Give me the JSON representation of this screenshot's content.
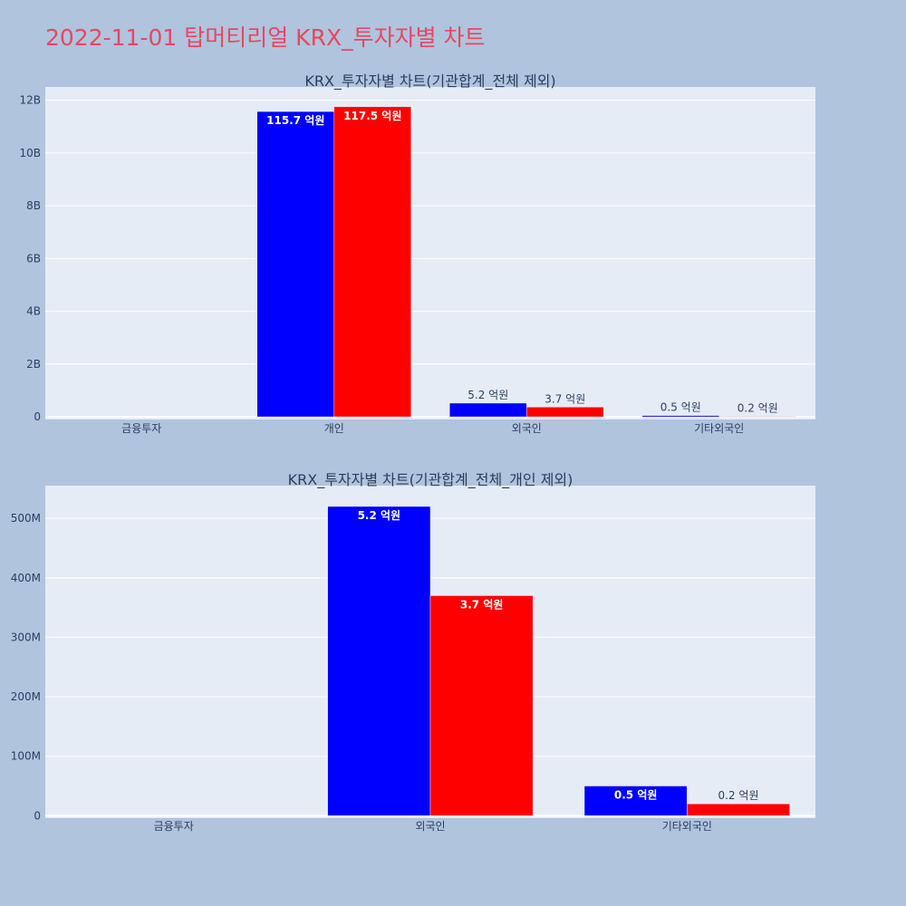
{
  "page": {
    "title": "2022-11-01 탑머티리얼 KRX_투자자별 차트"
  },
  "chart_data": [
    {
      "type": "bar",
      "title": "KRX_투자자별 차트(기관합계_전체 제외)",
      "categories": [
        "금융투자",
        "개인",
        "외국인",
        "기타외국인"
      ],
      "series": [
        {
          "color": "#0000ff",
          "values": [
            0,
            11570000000,
            520000000,
            50000000
          ],
          "labels": [
            "",
            "115.7 억원",
            "5.2 억원",
            "0.5 억원"
          ]
        },
        {
          "color": "#ff0000",
          "values": [
            0,
            11750000000,
            370000000,
            20000000
          ],
          "labels": [
            "",
            "117.5 억원",
            "3.7 억원",
            "0.2 억원"
          ]
        }
      ],
      "yticks": [
        0,
        2000000000,
        4000000000,
        6000000000,
        8000000000,
        10000000000,
        12000000000
      ],
      "ytick_labels": [
        "0",
        "2B",
        "4B",
        "6B",
        "8B",
        "10B",
        "12B"
      ],
      "ylim": [
        -100000000,
        12500000000
      ],
      "grid": true,
      "legend": "none"
    },
    {
      "type": "bar",
      "title": "KRX_투자자별 차트(기관합계_전체_개인 제외)",
      "categories": [
        "금융투자",
        "외국인",
        "기타외국인"
      ],
      "series": [
        {
          "color": "#0000ff",
          "values": [
            0,
            520000000,
            50000000
          ],
          "labels": [
            "",
            "5.2 억원",
            "0.5 억원"
          ]
        },
        {
          "color": "#ff0000",
          "values": [
            0,
            370000000,
            20000000
          ],
          "labels": [
            "",
            "3.7 억원",
            "0.2 억원"
          ]
        }
      ],
      "yticks": [
        0,
        100000000,
        200000000,
        300000000,
        400000000,
        500000000
      ],
      "ytick_labels": [
        "0",
        "100M",
        "200M",
        "300M",
        "400M",
        "500M"
      ],
      "ylim": [
        -4000000,
        555000000
      ],
      "grid": true,
      "legend": "none"
    }
  ]
}
